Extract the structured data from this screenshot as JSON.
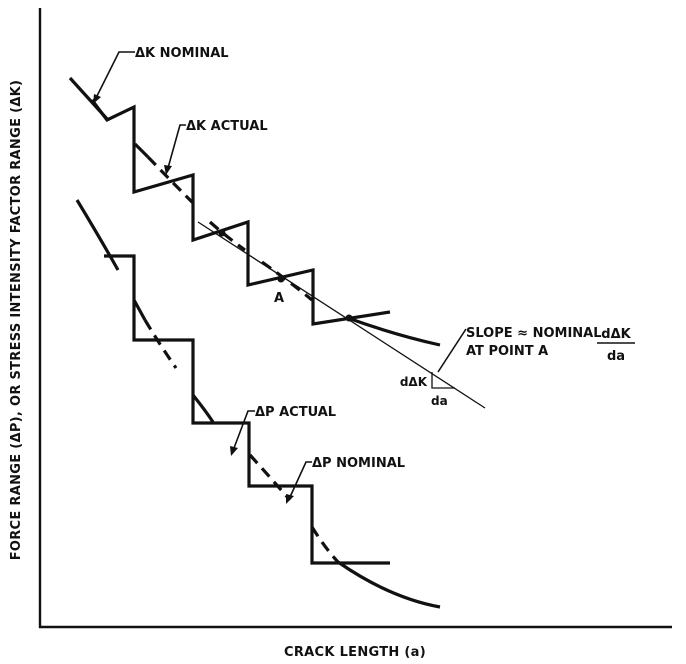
{
  "chart_data": {
    "type": "line",
    "xlabel": "CRACK LENGTH (a)",
    "ylabel": "FORCE RANGE (ΔP), OR STRESS INTENSITY FACTOR RANGE (ΔK)",
    "grid": false,
    "series": [
      {
        "name": "ΔK NOMINAL"
      },
      {
        "name": "ΔK ACTUAL"
      },
      {
        "name": "ΔP ACTUAL"
      },
      {
        "name": "ΔP NOMINAL"
      }
    ]
  },
  "annotations": {
    "point_a": "A",
    "slope_line1": "SLOPE ≈ NOMINAL",
    "slope_line2": "AT POINT A",
    "frac_num": "dΔK",
    "frac_den": "da",
    "tri_vertical": "dΔK",
    "tri_horizontal": "da"
  }
}
